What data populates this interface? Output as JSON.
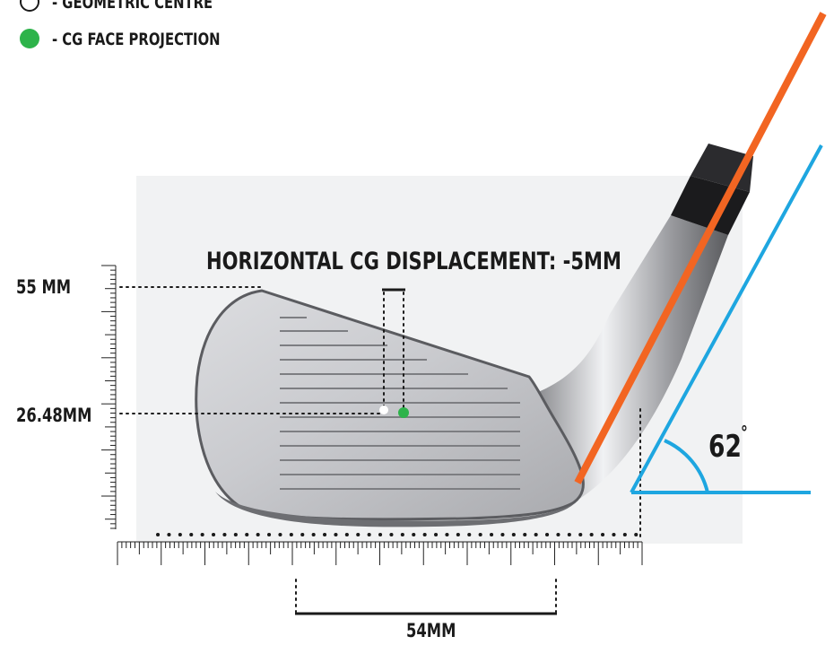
{
  "legend": {
    "items": [
      {
        "label": "- GEOMETRIC CENTRE",
        "marker": "open-circle",
        "color": "#1a1a1a"
      },
      {
        "label": "- CG FACE PROJECTION",
        "marker": "filled-circle",
        "color": "#2db34a"
      }
    ]
  },
  "measurements": {
    "title": "HORIZONTAL CG DISPLACEMENT: -5MM",
    "height_label": "55 MM",
    "cg_height_label": "26.48MM",
    "width_label": "54MM",
    "lie_angle": "62",
    "degree_symbol": "°"
  },
  "colors": {
    "shaft_line": "#f26522",
    "lie_line": "#1ea6e0",
    "cg_dot": "#2db34a",
    "text": "#1a1a1a"
  }
}
